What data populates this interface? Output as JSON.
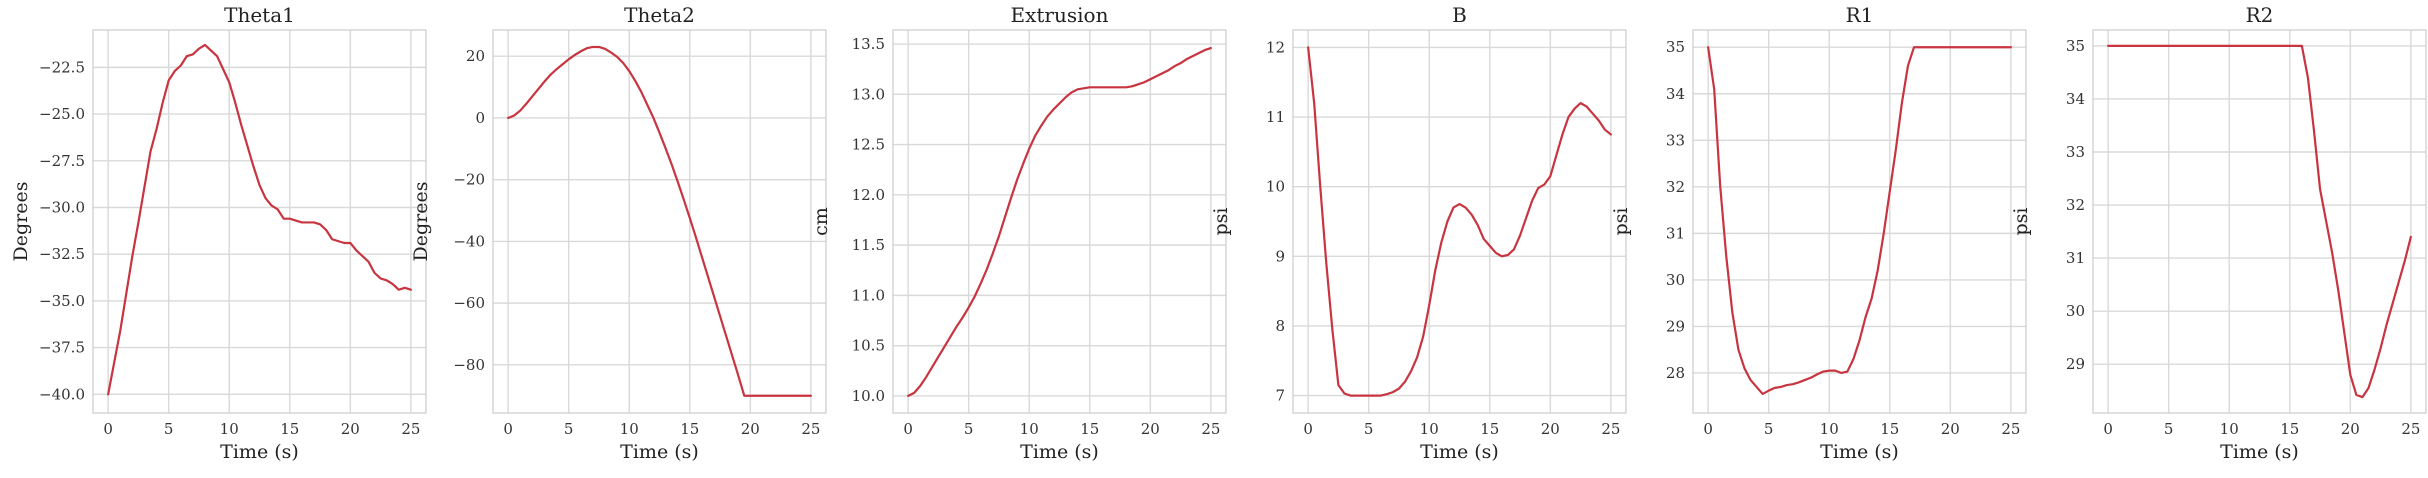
{
  "style": {
    "line_color": "#c8343f",
    "grid_color": "#d9d9d9",
    "frame_color": "#cccccc",
    "grid": true
  },
  "chart_data": [
    {
      "type": "line",
      "title": "Theta1",
      "xlabel": "Time (s)",
      "ylabel": "Degrees",
      "xlim": [
        -1.25,
        26.25
      ],
      "ylim": [
        -41.0,
        -20.5
      ],
      "xticks": [
        0,
        5,
        10,
        15,
        20,
        25
      ],
      "xtick_labels": [
        "0",
        "5",
        "10",
        "15",
        "20",
        "25"
      ],
      "yticks": [
        -40.0,
        -37.5,
        -35.0,
        -32.5,
        -30.0,
        -27.5,
        -25.0,
        -22.5
      ],
      "ytick_labels": [
        "−40.0",
        "−37.5",
        "−35.0",
        "−32.5",
        "−30.0",
        "−27.5",
        "−25.0",
        "−22.5"
      ],
      "x": [
        0,
        0.5,
        1,
        1.5,
        2,
        2.5,
        3,
        3.5,
        4,
        4.5,
        5,
        5.5,
        6,
        6.5,
        7,
        7.5,
        8,
        8.5,
        9,
        9.5,
        10,
        10.5,
        11,
        11.5,
        12,
        12.5,
        13,
        13.5,
        14,
        14.5,
        15,
        15.5,
        16,
        16.5,
        17,
        17.5,
        18,
        18.5,
        19,
        19.5,
        20,
        20.5,
        21,
        21.5,
        22,
        22.5,
        23,
        23.5,
        24,
        24.5,
        25
      ],
      "series": [
        {
          "values": [
            -40.0,
            -38.3,
            -36.6,
            -34.6,
            -32.6,
            -30.8,
            -28.9,
            -27.0,
            -25.8,
            -24.4,
            -23.2,
            -22.7,
            -22.4,
            -21.9,
            -21.8,
            -21.5,
            -21.3,
            -21.6,
            -21.9,
            -22.6,
            -23.3,
            -24.4,
            -25.6,
            -26.7,
            -27.8,
            -28.8,
            -29.5,
            -29.9,
            -30.1,
            -30.6,
            -30.6,
            -30.7,
            -30.8,
            -30.8,
            -30.8,
            -30.9,
            -31.2,
            -31.7,
            -31.8,
            -31.9,
            -31.9,
            -32.3,
            -32.6,
            -32.9,
            -33.5,
            -33.8,
            -33.9,
            -34.1,
            -34.4,
            -34.3,
            -34.4
          ]
        }
      ]
    },
    {
      "type": "line",
      "title": "Theta2",
      "xlabel": "Time (s)",
      "ylabel": "Degrees",
      "xlim": [
        -1.25,
        26.25
      ],
      "ylim": [
        -95.6,
        28.5
      ],
      "xticks": [
        0,
        5,
        10,
        15,
        20,
        25
      ],
      "xtick_labels": [
        "0",
        "5",
        "10",
        "15",
        "20",
        "25"
      ],
      "yticks": [
        -80,
        -60,
        -40,
        -20,
        0,
        20
      ],
      "ytick_labels": [
        "−80",
        "−60",
        "−40",
        "−20",
        "0",
        "20"
      ],
      "x": [
        0,
        0.5,
        1,
        1.5,
        2,
        2.5,
        3,
        3.5,
        4,
        4.5,
        5,
        5.5,
        6,
        6.5,
        7,
        7.5,
        8,
        8.5,
        9,
        9.5,
        10,
        10.5,
        11,
        11.5,
        12,
        12.5,
        13,
        13.5,
        14,
        14.5,
        15,
        15.5,
        16,
        16.5,
        17,
        17.5,
        18,
        18.5,
        19,
        19.5,
        20,
        20.5,
        21,
        21.5,
        22,
        22.5,
        23,
        23.5,
        24,
        24.5,
        25
      ],
      "series": [
        {
          "values": [
            0.0,
            0.8,
            2.4,
            4.6,
            7.0,
            9.4,
            11.8,
            14.0,
            15.8,
            17.4,
            19.0,
            20.4,
            21.6,
            22.6,
            23.0,
            23.0,
            22.4,
            21.2,
            19.8,
            17.8,
            15.2,
            12.0,
            8.4,
            4.2,
            0.0,
            -4.8,
            -9.8,
            -15.0,
            -20.6,
            -26.4,
            -32.4,
            -38.6,
            -45.0,
            -51.4,
            -57.8,
            -64.2,
            -70.6,
            -77.0,
            -83.4,
            -90.0,
            -90.0,
            -90.0,
            -90.0,
            -90.0,
            -90.0,
            -90.0,
            -90.0,
            -90.0,
            -90.0,
            -90.0,
            -90.0
          ]
        }
      ]
    },
    {
      "type": "line",
      "title": "Extrusion",
      "xlabel": "Time (s)",
      "ylabel": "cm",
      "xlim": [
        -1.25,
        26.25
      ],
      "ylim": [
        9.83,
        13.64
      ],
      "xticks": [
        0,
        5,
        10,
        15,
        20,
        25
      ],
      "xtick_labels": [
        "0",
        "5",
        "10",
        "15",
        "20",
        "25"
      ],
      "yticks": [
        10.0,
        10.5,
        11.0,
        11.5,
        12.0,
        12.5,
        13.0,
        13.5
      ],
      "ytick_labels": [
        "10.0",
        "10.5",
        "11.0",
        "11.5",
        "12.0",
        "12.5",
        "13.0",
        "13.5"
      ],
      "x": [
        0,
        0.5,
        1,
        1.5,
        2,
        2.5,
        3,
        3.5,
        4,
        4.5,
        5,
        5.5,
        6,
        6.5,
        7,
        7.5,
        8,
        8.5,
        9,
        9.5,
        10,
        10.5,
        11,
        11.5,
        12,
        12.5,
        13,
        13.5,
        14,
        14.5,
        15,
        15.5,
        16,
        16.5,
        17,
        17.5,
        18,
        18.5,
        19,
        19.5,
        20,
        20.5,
        21,
        21.5,
        22,
        22.5,
        23,
        23.5,
        24,
        24.5,
        25
      ],
      "series": [
        {
          "values": [
            10.0,
            10.03,
            10.1,
            10.19,
            10.29,
            10.39,
            10.49,
            10.59,
            10.69,
            10.78,
            10.88,
            10.99,
            11.12,
            11.26,
            11.42,
            11.59,
            11.78,
            11.97,
            12.15,
            12.31,
            12.46,
            12.59,
            12.69,
            12.78,
            12.85,
            12.91,
            12.97,
            13.02,
            13.05,
            13.06,
            13.07,
            13.07,
            13.07,
            13.07,
            13.07,
            13.07,
            13.07,
            13.08,
            13.1,
            13.12,
            13.15,
            13.18,
            13.21,
            13.24,
            13.28,
            13.31,
            13.35,
            13.38,
            13.41,
            13.44,
            13.46
          ]
        }
      ]
    },
    {
      "type": "line",
      "title": "B",
      "xlabel": "Time (s)",
      "ylabel": "psi",
      "xlim": [
        -1.25,
        26.25
      ],
      "ylim": [
        6.75,
        12.25
      ],
      "xticks": [
        0,
        5,
        10,
        15,
        20,
        25
      ],
      "xtick_labels": [
        "0",
        "5",
        "10",
        "15",
        "20",
        "25"
      ],
      "yticks": [
        7,
        8,
        9,
        10,
        11,
        12
      ],
      "ytick_labels": [
        "7",
        "8",
        "9",
        "10",
        "11",
        "12"
      ],
      "x": [
        0,
        0.5,
        1,
        1.5,
        2,
        2.5,
        3,
        3.5,
        4,
        4.5,
        5,
        5.5,
        6,
        6.5,
        7,
        7.5,
        8,
        8.5,
        9,
        9.5,
        10,
        10.5,
        11,
        11.5,
        12,
        12.5,
        13,
        13.5,
        14,
        14.5,
        15,
        15.5,
        16,
        16.5,
        17,
        17.5,
        18,
        18.5,
        19,
        19.5,
        20,
        20.5,
        21,
        21.5,
        22,
        22.5,
        23,
        23.5,
        24,
        24.5,
        25
      ],
      "series": [
        {
          "values": [
            12.0,
            11.2,
            10.0,
            8.9,
            7.95,
            7.15,
            7.03,
            7.0,
            7.0,
            7.0,
            7.0,
            7.0,
            7.0,
            7.02,
            7.05,
            7.1,
            7.2,
            7.35,
            7.55,
            7.85,
            8.3,
            8.8,
            9.2,
            9.5,
            9.7,
            9.75,
            9.7,
            9.6,
            9.45,
            9.25,
            9.15,
            9.05,
            9.0,
            9.02,
            9.1,
            9.3,
            9.55,
            9.8,
            9.98,
            10.03,
            10.15,
            10.45,
            10.75,
            11.0,
            11.12,
            11.2,
            11.15,
            11.05,
            10.95,
            10.82,
            10.75
          ]
        }
      ]
    },
    {
      "type": "line",
      "title": "R1",
      "xlabel": "Time (s)",
      "ylabel": "psi",
      "xlim": [
        -1.25,
        26.25
      ],
      "ylim": [
        27.14,
        35.37
      ],
      "xticks": [
        0,
        5,
        10,
        15,
        20,
        25
      ],
      "xtick_labels": [
        "0",
        "5",
        "10",
        "15",
        "20",
        "25"
      ],
      "yticks": [
        28,
        29,
        30,
        31,
        32,
        33,
        34,
        35
      ],
      "ytick_labels": [
        "28",
        "29",
        "30",
        "31",
        "32",
        "33",
        "34",
        "35"
      ],
      "x": [
        0,
        0.5,
        1,
        1.5,
        2,
        2.5,
        3,
        3.5,
        4,
        4.5,
        5,
        5.5,
        6,
        6.5,
        7,
        7.5,
        8,
        8.5,
        9,
        9.5,
        10,
        10.5,
        11,
        11.5,
        12,
        12.5,
        13,
        13.5,
        14,
        14.5,
        15,
        15.5,
        16,
        16.5,
        17,
        17.5,
        18,
        18.5,
        19,
        19.5,
        20,
        20.5,
        21,
        21.5,
        22,
        22.5,
        23,
        23.5,
        24,
        24.5,
        25
      ],
      "series": [
        {
          "values": [
            35.0,
            34.1,
            32.0,
            30.5,
            29.3,
            28.5,
            28.1,
            27.85,
            27.7,
            27.55,
            27.62,
            27.68,
            27.7,
            27.74,
            27.76,
            27.8,
            27.85,
            27.9,
            27.97,
            28.03,
            28.05,
            28.05,
            28.0,
            28.03,
            28.3,
            28.7,
            29.2,
            29.6,
            30.2,
            31.0,
            31.9,
            32.8,
            33.8,
            34.6,
            35.0,
            35.0,
            35.0,
            35.0,
            35.0,
            35.0,
            35.0,
            35.0,
            35.0,
            35.0,
            35.0,
            35.0,
            35.0,
            35.0,
            35.0,
            35.0,
            35.0
          ]
        }
      ]
    },
    {
      "type": "line",
      "title": "R2",
      "xlabel": "Time (s)",
      "ylabel": "psi",
      "xlim": [
        -1.25,
        26.25
      ],
      "ylim": [
        28.08,
        35.3
      ],
      "xticks": [
        0,
        5,
        10,
        15,
        20,
        25
      ],
      "xtick_labels": [
        "0",
        "5",
        "10",
        "15",
        "20",
        "25"
      ],
      "yticks": [
        29,
        30,
        31,
        32,
        33,
        34,
        35
      ],
      "ytick_labels": [
        "29",
        "30",
        "31",
        "32",
        "33",
        "34",
        "35"
      ],
      "x": [
        0,
        0.5,
        1,
        1.5,
        2,
        2.5,
        3,
        3.5,
        4,
        4.5,
        5,
        5.5,
        6,
        6.5,
        7,
        7.5,
        8,
        8.5,
        9,
        9.5,
        10,
        10.5,
        11,
        11.5,
        12,
        12.5,
        13,
        13.5,
        14,
        14.5,
        15,
        15.5,
        16,
        16.5,
        17,
        17.5,
        18,
        18.5,
        19,
        19.5,
        20,
        20.5,
        21,
        21.5,
        22,
        22.5,
        23,
        23.5,
        24,
        24.5,
        25
      ],
      "series": [
        {
          "values": [
            35.0,
            35.0,
            35.0,
            35.0,
            35.0,
            35.0,
            35.0,
            35.0,
            35.0,
            35.0,
            35.0,
            35.0,
            35.0,
            35.0,
            35.0,
            35.0,
            35.0,
            35.0,
            35.0,
            35.0,
            35.0,
            35.0,
            35.0,
            35.0,
            35.0,
            35.0,
            35.0,
            35.0,
            35.0,
            35.0,
            35.0,
            35.0,
            35.0,
            34.4,
            33.4,
            32.3,
            31.7,
            31.1,
            30.4,
            29.6,
            28.8,
            28.42,
            28.38,
            28.55,
            28.9,
            29.3,
            29.75,
            30.15,
            30.55,
            30.95,
            31.4
          ]
        }
      ]
    }
  ]
}
